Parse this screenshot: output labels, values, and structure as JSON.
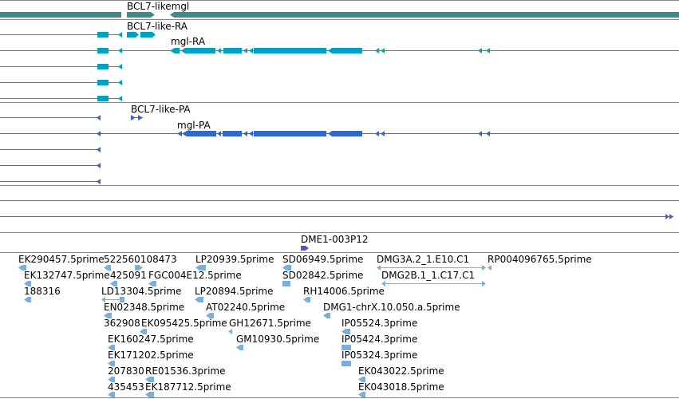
{
  "colors": {
    "gene": "#3c8c8c",
    "transcript": "#00a0c0",
    "protein": "#3366cc",
    "est_track": "#6a4fb5",
    "clone": "#6a4fb5",
    "est": "#7ab0d8",
    "divider": "#888888"
  },
  "gene_track": {
    "labels": [
      "BCL7-likemgl"
    ]
  },
  "transcript_track": {
    "labels": [
      "BCL7-like-RA",
      "mgl-RA"
    ]
  },
  "protein_track": {
    "labels": [
      "BCL7-like-PA",
      "mgl-PA"
    ]
  },
  "clone_track": {
    "labels": [
      "DME1-003P12"
    ]
  },
  "est_track": {
    "labels": [
      "EK290457.5prime",
      "522560108473",
      "LP20939.5prime",
      "SD06949.5prime",
      "DMG3A.2_1.E10.C1",
      "RP004096765.5prime",
      "EK132747.5prime",
      "425091",
      "FGC004E12.5prime",
      "SD02842.5prime",
      "DMG2B.1_1.C17.C1",
      "188316",
      "LD13304.5prime",
      "LP20894.5prime",
      "RH14006.5prime",
      "EN02348.5prime",
      "AT02240.5prime",
      "DMG1-chrX.10.050.a.5prime",
      "362908",
      "EK095425.5prime",
      "GH12671.5prime",
      "IP05524.3prime",
      "EK160247.5prime",
      "GM10930.5prime",
      "IP05424.3prime",
      "EK171202.5prime",
      "IP05324.3prime",
      "207830",
      "RE01536.3prime",
      "EK043022.5prime",
      "435453",
      "EK187712.5prime",
      "EK043018.5prime"
    ]
  }
}
